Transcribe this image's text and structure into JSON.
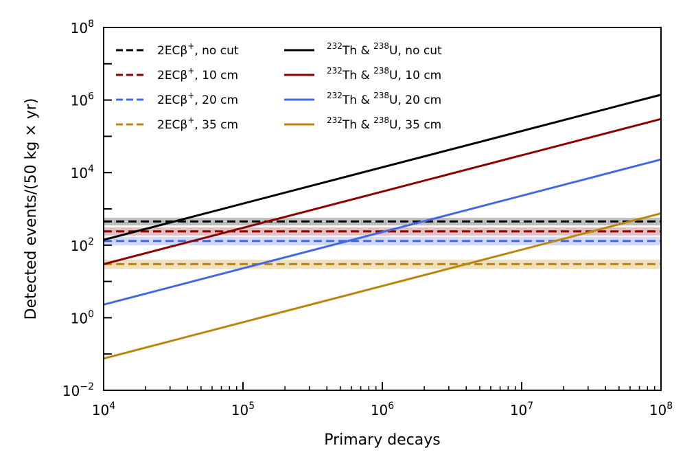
{
  "chart_data": {
    "type": "line",
    "xlabel": "Primary decays",
    "ylabel": "Detected events/(50 kg × yr)",
    "xscale": "log",
    "yscale": "log",
    "xlim": [
      10000,
      100000000
    ],
    "ylim": [
      0.01,
      100000000
    ],
    "x_ticks": [
      {
        "value": 10000,
        "base": "10",
        "exp": "4"
      },
      {
        "value": 100000,
        "base": "10",
        "exp": "5"
      },
      {
        "value": 1000000,
        "base": "10",
        "exp": "6"
      },
      {
        "value": 10000000,
        "base": "10",
        "exp": "7"
      },
      {
        "value": 100000000,
        "base": "10",
        "exp": "8"
      }
    ],
    "y_ticks": [
      {
        "value": 0.01,
        "base": "10",
        "exp": "−2"
      },
      {
        "value": 1,
        "base": "10",
        "exp": "0"
      },
      {
        "value": 100,
        "base": "10",
        "exp": "2"
      },
      {
        "value": 10000,
        "base": "10",
        "exp": "4"
      },
      {
        "value": 1000000,
        "base": "10",
        "exp": "6"
      },
      {
        "value": 100000000,
        "base": "10",
        "exp": "8"
      }
    ],
    "grid": false,
    "legend_position": "top-left",
    "series": [
      {
        "legend_main": "2ECβ",
        "legend_sup": "+",
        "legend_rest": ", no cut",
        "style": "dashed",
        "color": "#000000",
        "x": [
          10000,
          100000000
        ],
        "y": [
          450,
          450
        ],
        "band": [
          350,
          570
        ]
      },
      {
        "legend_main": "2ECβ",
        "legend_sup": "+",
        "legend_rest": ", 10 cm",
        "style": "dashed",
        "color": "#8b0000",
        "x": [
          10000,
          100000000
        ],
        "y": [
          240,
          240
        ],
        "band": [
          185,
          310
        ]
      },
      {
        "legend_main": "2ECβ",
        "legend_sup": "+",
        "legend_rest": ", 20 cm",
        "style": "dashed",
        "color": "#4169e1",
        "x": [
          10000,
          100000000
        ],
        "y": [
          130,
          130
        ],
        "band": [
          100,
          170
        ]
      },
      {
        "legend_main": "2ECβ",
        "legend_sup": "+",
        "legend_rest": ", 35 cm",
        "style": "dashed",
        "color": "#b8860b",
        "x": [
          10000,
          100000000
        ],
        "y": [
          30,
          30
        ],
        "band": [
          22,
          40
        ]
      },
      {
        "legend_sup1": "232",
        "legend_text1": "Th & ",
        "legend_sup2": "238",
        "legend_text2": "U, no cut",
        "style": "solid",
        "color": "#000000",
        "x": [
          10000,
          100000000
        ],
        "y": [
          140,
          1400000
        ]
      },
      {
        "legend_sup1": "232",
        "legend_text1": "Th & ",
        "legend_sup2": "238",
        "legend_text2": "U, 10 cm",
        "style": "solid",
        "color": "#8b0000",
        "x": [
          10000,
          100000000
        ],
        "y": [
          30,
          300000
        ]
      },
      {
        "legend_sup1": "232",
        "legend_text1": "Th & ",
        "legend_sup2": "238",
        "legend_text2": "U, 20 cm",
        "style": "solid",
        "color": "#4169e1",
        "x": [
          10000,
          100000000
        ],
        "y": [
          2.3,
          23000
        ]
      },
      {
        "legend_sup1": "232",
        "legend_text1": "Th & ",
        "legend_sup2": "238",
        "legend_text2": "U, 35 cm",
        "style": "solid",
        "color": "#b8860b",
        "x": [
          10000,
          100000000
        ],
        "y": [
          0.075,
          750
        ]
      }
    ]
  }
}
